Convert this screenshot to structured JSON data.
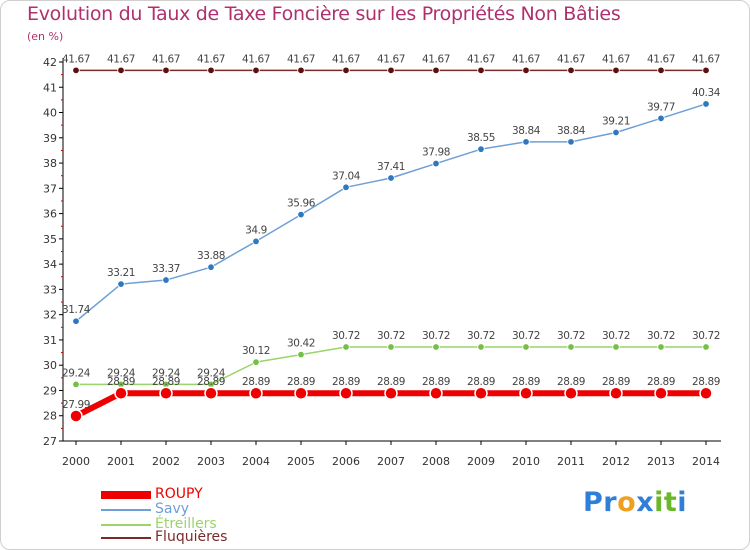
{
  "title": "Evolution du Taux de Taxe Foncière sur les Propriétés Non Bâties",
  "unit_label": "(en %)",
  "colors": {
    "title": "#b0306e",
    "axis": "#000000",
    "grid_tick": "#cc0000"
  },
  "chart_data": {
    "type": "line",
    "title": "Evolution du Taux de Taxe Foncière sur les Propriétés Non Bâties",
    "ylabel": "(en %)",
    "xlabel": "",
    "ylim": [
      27,
      42
    ],
    "yticks": [
      "27",
      "28",
      "29",
      "30",
      "31",
      "32",
      "33",
      "34",
      "35",
      "36",
      "37",
      "38",
      "39",
      "40",
      "41",
      "42"
    ],
    "categories": [
      "2000",
      "2001",
      "2002",
      "2003",
      "2004",
      "2005",
      "2006",
      "2007",
      "2008",
      "2009",
      "2010",
      "2011",
      "2012",
      "2013",
      "2014"
    ],
    "series": [
      {
        "name": "Fluquières",
        "color": "#7a2a2a",
        "point_color": "#5a1010",
        "values": [
          41.67,
          41.67,
          41.67,
          41.67,
          41.67,
          41.67,
          41.67,
          41.67,
          41.67,
          41.67,
          41.67,
          41.67,
          41.67,
          41.67,
          41.67
        ],
        "labels": [
          "41.67",
          "41.67",
          "41.67",
          "41.67",
          "41.67",
          "41.67",
          "41.67",
          "41.67",
          "41.67",
          "41.67",
          "41.67",
          "41.67",
          "41.67",
          "41.67",
          "41.67"
        ]
      },
      {
        "name": "Savy",
        "color": "#6e9fd6",
        "point_color": "#2f78c0",
        "values": [
          31.74,
          33.21,
          33.37,
          33.88,
          34.9,
          35.96,
          37.04,
          37.41,
          37.98,
          38.55,
          38.84,
          38.84,
          39.21,
          39.77,
          40.34
        ],
        "labels": [
          "31.74",
          "33.21",
          "33.37",
          "33.88",
          "34.9",
          "35.96",
          "37.04",
          "37.41",
          "37.98",
          "38.55",
          "38.84",
          "38.84",
          "39.21",
          "39.77",
          "40.34"
        ]
      },
      {
        "name": "Étreillers",
        "color": "#9ad46a",
        "point_color": "#74c044",
        "values": [
          29.24,
          29.24,
          29.24,
          29.24,
          30.12,
          30.42,
          30.72,
          30.72,
          30.72,
          30.72,
          30.72,
          30.72,
          30.72,
          30.72,
          30.72
        ],
        "labels": [
          "29.24",
          "29.24",
          "29.24",
          "29.24",
          "30.12",
          "30.42",
          "30.72",
          "30.72",
          "30.72",
          "30.72",
          "30.72",
          "30.72",
          "30.72",
          "30.72",
          "30.72"
        ]
      },
      {
        "name": "ROUPY",
        "color": "#ee0000",
        "point_color": "#ee0000",
        "values": [
          27.99,
          28.89,
          28.89,
          28.89,
          28.89,
          28.89,
          28.89,
          28.89,
          28.89,
          28.89,
          28.89,
          28.89,
          28.89,
          28.89,
          28.89
        ],
        "labels": [
          "27.99",
          "28.89",
          "28.89",
          "28.89",
          "28.89",
          "28.89",
          "28.89",
          "28.89",
          "28.89",
          "28.89",
          "28.89",
          "28.89",
          "28.89",
          "28.89",
          "28.89"
        ]
      }
    ],
    "legend": {
      "position": "bottom-left",
      "entries": [
        {
          "name": "ROUPY",
          "color": "#ee0000"
        },
        {
          "name": "Savy",
          "color": "#6e9fd6"
        },
        {
          "name": "Étreillers",
          "color": "#9ad46a"
        },
        {
          "name": "Fluquières",
          "color": "#7a2a2a"
        }
      ]
    }
  },
  "logo": {
    "letters": [
      "P",
      "r",
      "o",
      "x",
      "i",
      "t",
      "i"
    ],
    "colors": [
      "#2f7ed8",
      "#2f7ed8",
      "#f0a020",
      "#2f7ed8",
      "#6ab82a",
      "#6ab82a",
      "#2f7ed8"
    ]
  }
}
